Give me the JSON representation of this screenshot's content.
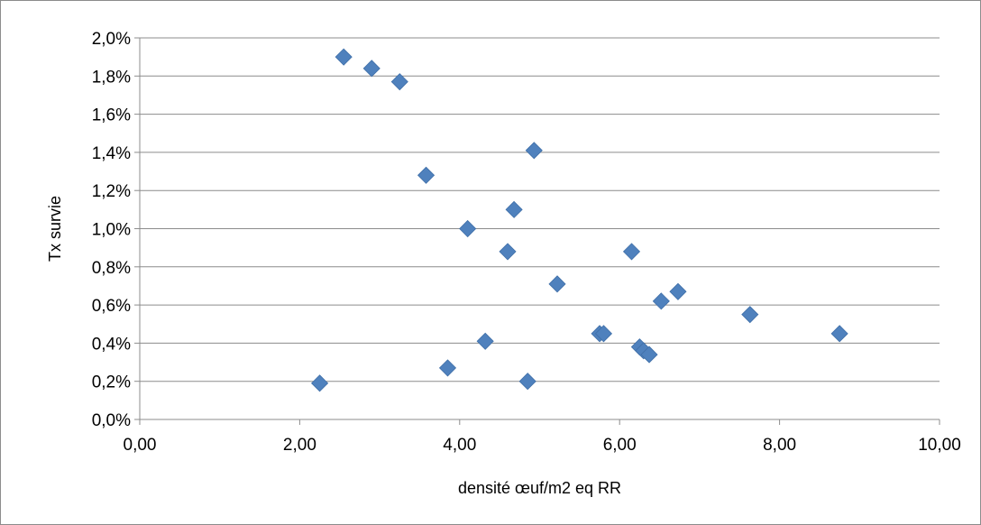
{
  "chart_data": {
    "type": "scatter",
    "title": "",
    "xlabel": "densité œuf/m2 eq RR",
    "ylabel": "Tx survie",
    "xlim": [
      0,
      10
    ],
    "ylim": [
      0,
      0.02
    ],
    "xticks": [
      0,
      2,
      4,
      6,
      8,
      10
    ],
    "xtick_labels": [
      "0,00",
      "2,00",
      "4,00",
      "6,00",
      "8,00",
      "10,00"
    ],
    "yticks": [
      0,
      0.002,
      0.004,
      0.006,
      0.008,
      0.01,
      0.012,
      0.014,
      0.016,
      0.018,
      0.02
    ],
    "ytick_labels": [
      "0,0%",
      "0,2%",
      "0,4%",
      "0,6%",
      "0,8%",
      "1,0%",
      "1,2%",
      "1,4%",
      "1,6%",
      "1,8%",
      "2,0%"
    ],
    "grid": "horizontal",
    "marker": "diamond",
    "marker_color": "#4f81bd",
    "points": [
      {
        "x": 2.25,
        "y": 0.0019
      },
      {
        "x": 2.55,
        "y": 0.019
      },
      {
        "x": 2.9,
        "y": 0.0184
      },
      {
        "x": 3.25,
        "y": 0.0177
      },
      {
        "x": 3.58,
        "y": 0.0128
      },
      {
        "x": 3.85,
        "y": 0.0027
      },
      {
        "x": 4.1,
        "y": 0.01
      },
      {
        "x": 4.32,
        "y": 0.0041
      },
      {
        "x": 4.6,
        "y": 0.0088
      },
      {
        "x": 4.68,
        "y": 0.011
      },
      {
        "x": 4.85,
        "y": 0.002
      },
      {
        "x": 4.93,
        "y": 0.0141
      },
      {
        "x": 5.22,
        "y": 0.0071
      },
      {
        "x": 5.75,
        "y": 0.0045
      },
      {
        "x": 5.8,
        "y": 0.0045
      },
      {
        "x": 6.15,
        "y": 0.0088
      },
      {
        "x": 6.25,
        "y": 0.0038
      },
      {
        "x": 6.3,
        "y": 0.0036
      },
      {
        "x": 6.37,
        "y": 0.0034
      },
      {
        "x": 6.52,
        "y": 0.0062
      },
      {
        "x": 6.73,
        "y": 0.0067
      },
      {
        "x": 7.63,
        "y": 0.0055
      },
      {
        "x": 8.75,
        "y": 0.0045
      }
    ]
  }
}
